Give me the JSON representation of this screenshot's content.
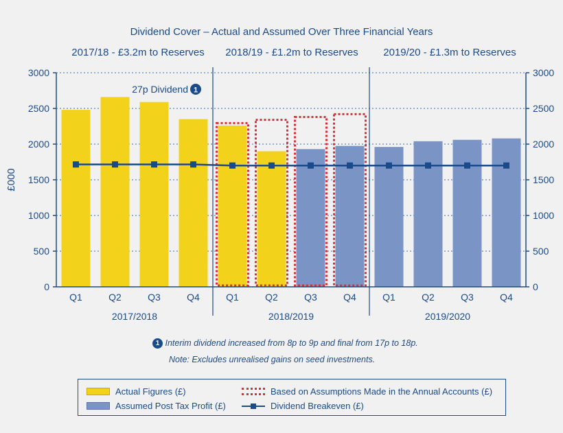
{
  "chart_data": {
    "type": "bar",
    "title": "Dividend Cover – Actual and Assumed Over Three Financial Years",
    "ylabel": "£000",
    "ylim": [
      0,
      3000
    ],
    "yticks": [
      "0",
      "500",
      "1000",
      "1500",
      "2000",
      "2500",
      "3000"
    ],
    "ytick_values": [
      0,
      500,
      1000,
      1500,
      2000,
      2500,
      3000
    ],
    "periods": [
      {
        "year": "2017/2018",
        "header": "2017/18 - £3.2m to Reserves"
      },
      {
        "year": "2018/2019",
        "header": "2018/19 - £1.2m to Reserves"
      },
      {
        "year": "2019/2020",
        "header": "2019/20 - £1.3m to Reserves"
      }
    ],
    "categories": [
      "Q1",
      "Q2",
      "Q3",
      "Q4",
      "Q1",
      "Q2",
      "Q3",
      "Q4",
      "Q1",
      "Q2",
      "Q3",
      "Q4"
    ],
    "series": [
      {
        "name": "Actual Figures (£)",
        "color": "#f2d21b",
        "values": [
          2480,
          2660,
          2590,
          2350,
          2260,
          1900,
          null,
          null,
          null,
          null,
          null,
          null
        ]
      },
      {
        "name": "Assumed Post Tax Profit (£)",
        "color": "#7a94c6",
        "values": [
          null,
          null,
          null,
          null,
          null,
          null,
          1930,
          1975,
          1960,
          2040,
          2060,
          2080
        ]
      },
      {
        "name": "Based on Assumptions Made in the Annual Accounts (£)",
        "color": "#d62f3a",
        "values": [
          null,
          null,
          null,
          null,
          2295,
          2340,
          2380,
          2420,
          null,
          null,
          null,
          null
        ]
      },
      {
        "name": "Dividend Breakeven (£)",
        "color": "#1a4a8a",
        "values": [
          1715,
          1715,
          1715,
          1715,
          1700,
          1700,
          1700,
          1700,
          1700,
          1700,
          1700,
          1700
        ]
      }
    ],
    "annotation": {
      "text": "27p Dividend",
      "marker": "1"
    }
  },
  "notes": {
    "marker": "1",
    "line1": "Interim dividend increased from 8p to 9p and final from 17p to 18p.",
    "line2": "Note: Excludes unrealised gains on seed investments."
  },
  "legend": {
    "actual": "Actual Figures (£)",
    "assumptions": "Based on Assumptions Made in the Annual Accounts (£)",
    "assumed": "Assumed Post Tax Profit (£)",
    "breakeven": "Dividend Breakeven (£)"
  }
}
